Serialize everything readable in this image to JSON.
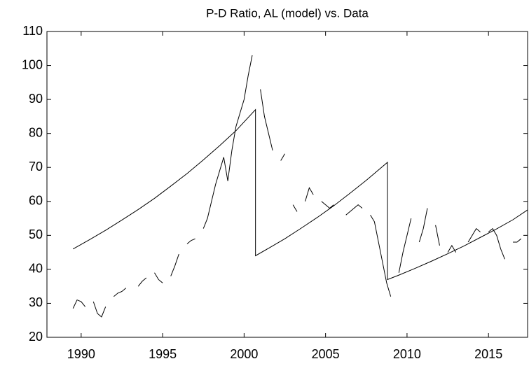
{
  "chart_data": {
    "type": "line",
    "title": "P-D Ratio, AL (model) vs. Data",
    "xlim": [
      1987.9,
      2017.4
    ],
    "xticks": [
      1990,
      1995,
      2000,
      2005,
      2010,
      2015
    ],
    "ylim": [
      20,
      110
    ],
    "yticks": [
      20,
      30,
      40,
      50,
      60,
      70,
      80,
      90,
      100,
      110
    ],
    "grid": false,
    "series": [
      {
        "color": "#000000",
        "x": [
          1989.5,
          1990.5,
          1991.5,
          1992.5,
          1993.5,
          1994.5,
          1995.5,
          1996.5,
          1997.5,
          1998.5,
          1999.5,
          2000.7,
          2000.7,
          2001.5,
          2002.5,
          2003.5,
          2004.5,
          2005.5,
          2006.5,
          2007.5,
          2008.8,
          2008.8,
          2009.5,
          2010.5,
          2011.5,
          2012.5,
          2013.5,
          2014.5,
          2015.5,
          2016.5,
          2017.4
        ],
        "values": [
          46.0,
          48.7,
          51.5,
          54.5,
          57.6,
          60.9,
          64.5,
          68.2,
          72.2,
          76.4,
          80.8,
          87.0,
          44.0,
          46.2,
          49.0,
          52.1,
          55.3,
          58.7,
          62.4,
          66.2,
          71.5,
          37.0,
          38.3,
          40.3,
          42.4,
          44.6,
          46.9,
          49.4,
          51.9,
          54.6,
          57.5
        ]
      },
      {
        "color": "#000000",
        "x": [
          1989.5,
          1989.75,
          1990,
          1990.25,
          1990.5,
          1990.75,
          1991,
          1991.25,
          1991.5,
          1991.75,
          1992,
          1992.25,
          1992.5,
          1992.75,
          1993,
          1993.5,
          1993.75,
          1994,
          1994.25,
          1994.5,
          1994.75,
          1995,
          1995.25,
          1995.5,
          1995.75,
          1996,
          1996.25,
          1996.5,
          1996.75,
          1997,
          1997.25,
          1997.5,
          1997.75,
          1998,
          1998.25,
          1998.5,
          1998.75,
          1999,
          1999.25,
          1999.5,
          1999.75,
          2000,
          2000.25,
          2000.5,
          2000.75,
          2001,
          2001.25,
          2001.5,
          2001.75,
          2002,
          2002.25,
          2002.5,
          2002.75,
          2003,
          2003.25,
          2003.5,
          2003.75,
          2004,
          2004.25,
          2004.5,
          2004.75,
          2005,
          2005.25,
          2005.5,
          2005.75,
          2006.25,
          2006.5,
          2006.75,
          2007,
          2007.25,
          2007.5,
          2007.75,
          2008,
          2008.25,
          2008.5,
          2008.75,
          2009,
          2009.25,
          2009.5,
          2009.75,
          2010,
          2010.25,
          2010.5,
          2010.75,
          2011,
          2011.25,
          2011.5,
          2011.75,
          2012,
          2012.25,
          2012.5,
          2012.75,
          2013,
          2013.25,
          2013.75,
          2014,
          2014.25,
          2014.5,
          2014.75,
          2015,
          2015.25,
          2015.5,
          2015.75,
          2016,
          2016.25,
          2016.5,
          2016.75,
          2017
        ],
        "values": [
          28.5,
          31,
          30.5,
          29,
          null,
          30.5,
          27,
          26,
          29,
          null,
          32,
          33,
          33.5,
          34.5,
          null,
          35,
          36.5,
          37.5,
          null,
          39,
          37,
          36,
          null,
          38,
          41,
          44.5,
          null,
          47.5,
          48.5,
          49,
          null,
          52,
          55,
          60,
          65,
          69,
          73,
          66,
          75,
          82,
          86,
          90,
          97,
          103,
          null,
          93,
          85,
          80,
          75,
          null,
          72,
          74,
          null,
          59,
          57,
          null,
          60,
          64,
          62,
          null,
          60,
          59,
          58,
          59,
          null,
          56,
          57,
          58,
          59,
          58,
          null,
          56,
          54,
          48,
          42,
          36,
          32,
          null,
          39,
          45,
          50,
          55,
          null,
          48,
          52,
          58,
          null,
          53,
          47,
          null,
          45,
          47,
          45,
          null,
          48,
          50,
          52,
          51,
          null,
          51,
          52,
          50,
          46,
          43,
          null,
          48,
          48,
          49
        ]
      }
    ]
  }
}
